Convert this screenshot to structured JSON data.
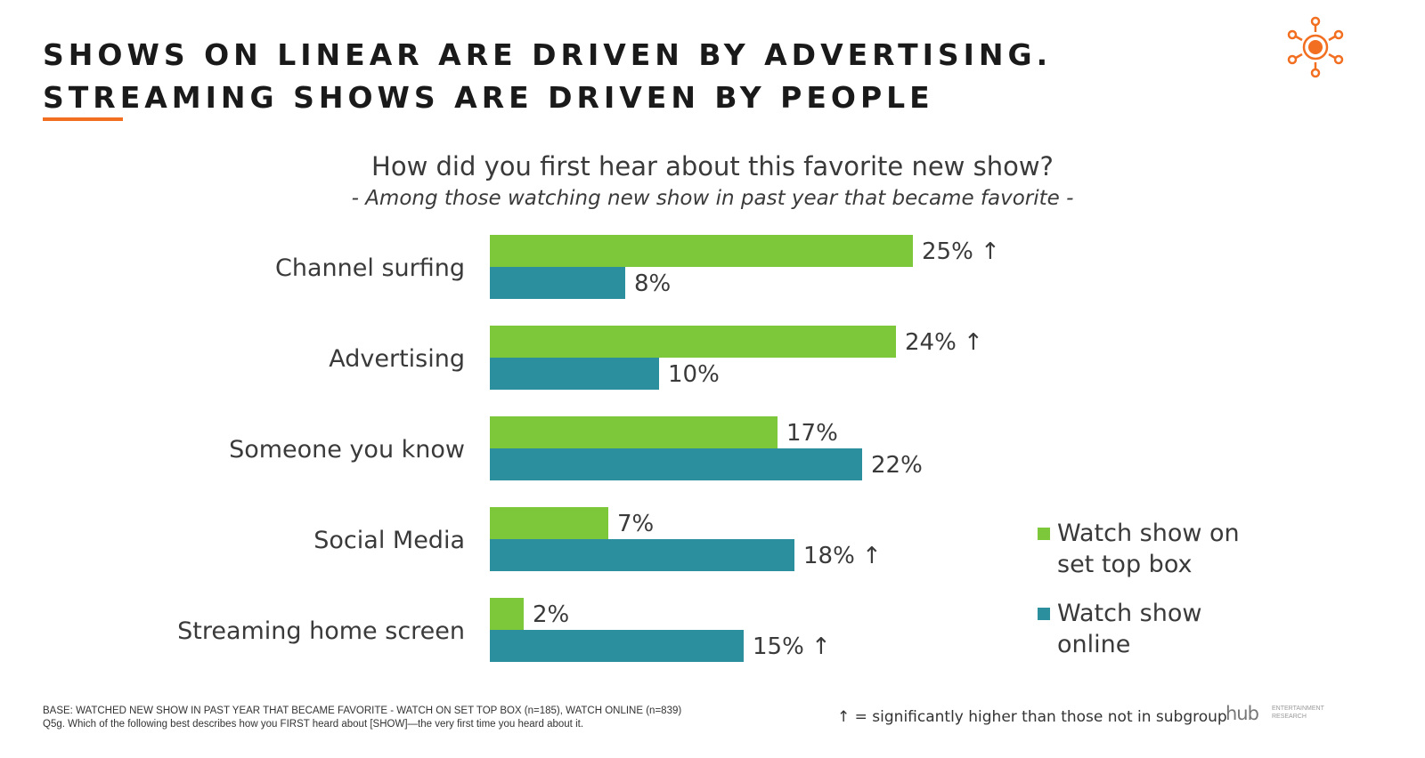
{
  "header": {
    "title": "SHOWS ON LINEAR ARE DRIVEN BY ADVERTISING. STREAMING SHOWS ARE DRIVEN BY PEOPLE"
  },
  "colors": {
    "accent": "#f26f21",
    "green": "#7dc83a",
    "teal": "#2b8f9e"
  },
  "chart_data": {
    "type": "bar",
    "orientation": "horizontal",
    "title": "How did you first hear about this favorite new show?",
    "subtitle": "- Among those watching new show in past year that became favorite -",
    "categories": [
      "Channel surfing",
      "Advertising",
      "Someone you know",
      "Social Media",
      "Streaming home screen"
    ],
    "series": [
      {
        "name": "Watch show on set top box",
        "values": [
          25,
          24,
          17,
          7,
          2
        ],
        "labels": [
          "25% ↑",
          "24% ↑",
          "17%",
          "7%",
          "2%"
        ]
      },
      {
        "name": "Watch show online",
        "values": [
          8,
          10,
          22,
          18,
          15
        ],
        "labels": [
          "8%",
          "10%",
          "22%",
          "18% ↑",
          "15% ↑"
        ]
      }
    ],
    "xlim": [
      0,
      25
    ],
    "grid": false,
    "legend": "right"
  },
  "footer": {
    "base": "BASE: WATCHED NEW SHOW IN PAST YEAR THAT BECAME FAVORITE - WATCH ON SET TOP BOX (n=185), WATCH ONLINE (n=839)",
    "question": "Q5g. Which of the following best describes how you FIRST heard about [SHOW]—the very first time you heard about it.",
    "significance": "↑ = significantly higher than those not in subgroup",
    "brand": "hub",
    "brand_sub": "ENTERTAINMENT RESEARCH"
  }
}
